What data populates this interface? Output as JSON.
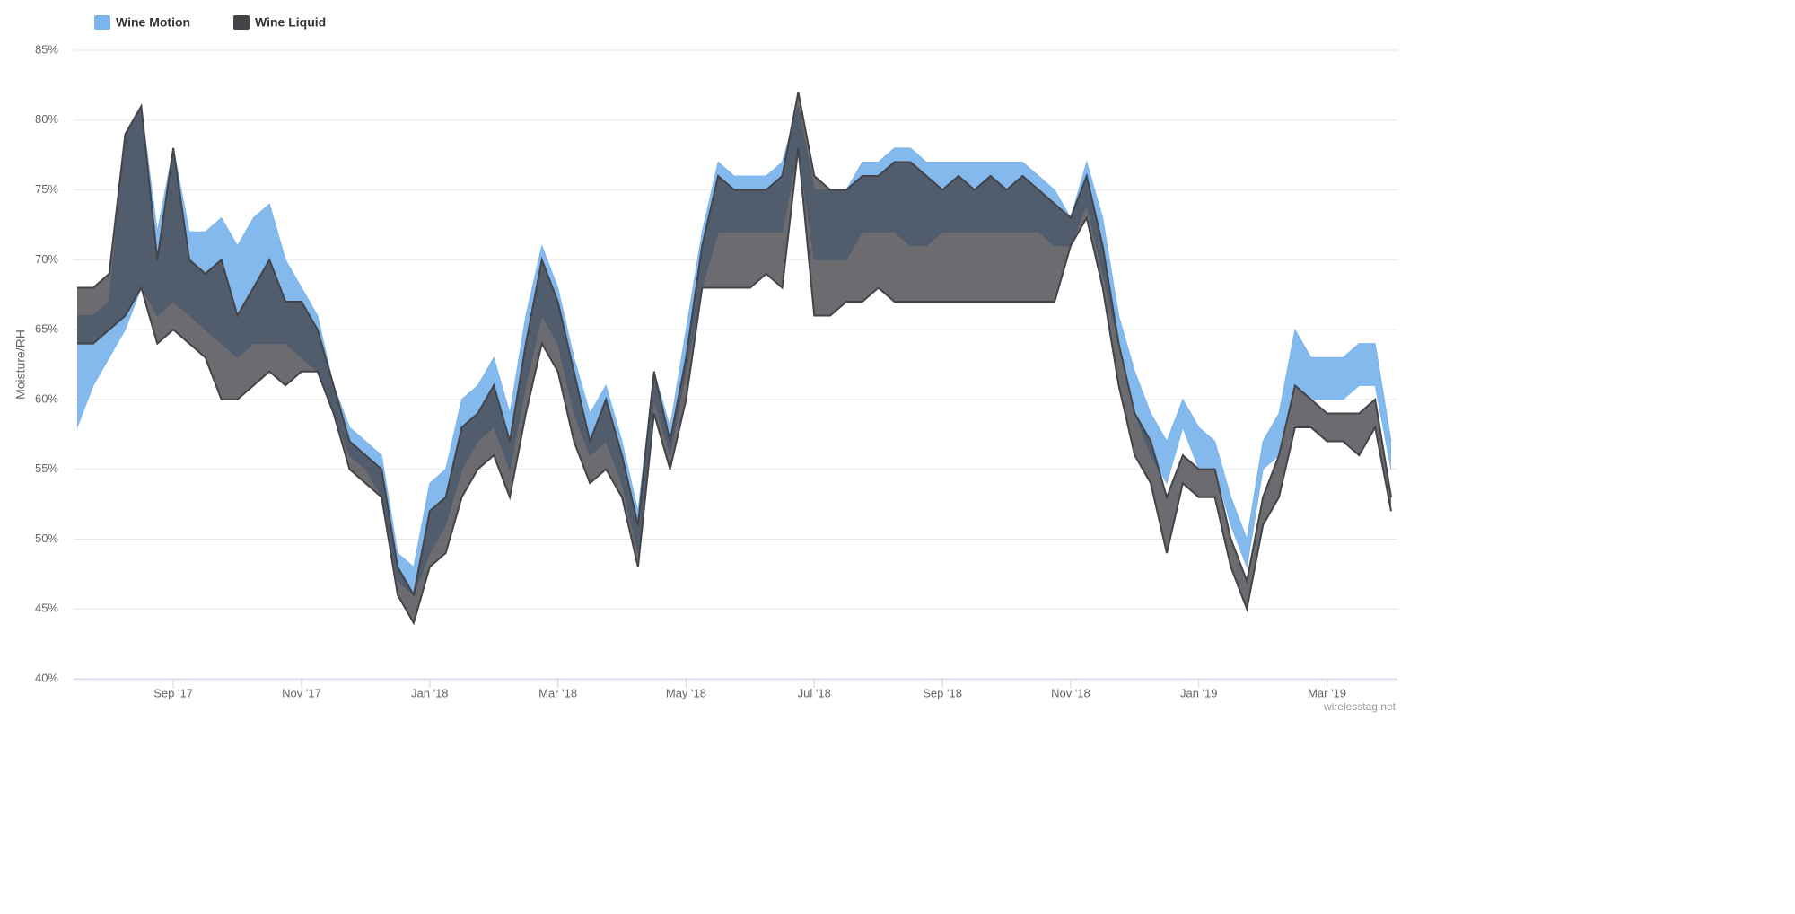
{
  "chart_data": {
    "type": "arearange",
    "y_label": "Moisture/RH",
    "credit": "wirelesstag.net",
    "legend": "top-left",
    "grid": true,
    "ylim": [
      40,
      85
    ],
    "yticks": [
      {
        "value": 40,
        "label": "40%"
      },
      {
        "value": 45,
        "label": "45%"
      },
      {
        "value": 50,
        "label": "50%"
      },
      {
        "value": 55,
        "label": "55%"
      },
      {
        "value": 60,
        "label": "60%"
      },
      {
        "value": 65,
        "label": "65%"
      },
      {
        "value": 70,
        "label": "70%"
      },
      {
        "value": 75,
        "label": "75%"
      },
      {
        "value": 80,
        "label": "80%"
      },
      {
        "value": 85,
        "label": "85%"
      }
    ],
    "categories": [
      null,
      null,
      null,
      null,
      null,
      null,
      "Sep '17",
      null,
      null,
      null,
      null,
      null,
      null,
      null,
      "Nov '17",
      null,
      null,
      null,
      null,
      null,
      null,
      null,
      "Jan '18",
      null,
      null,
      null,
      null,
      null,
      null,
      null,
      "Mar '18",
      null,
      null,
      null,
      null,
      null,
      null,
      null,
      "May '18",
      null,
      null,
      null,
      null,
      null,
      null,
      null,
      "Jul '18",
      null,
      null,
      null,
      null,
      null,
      null,
      null,
      "Sep '18",
      null,
      null,
      null,
      null,
      null,
      null,
      null,
      "Nov '18",
      null,
      null,
      null,
      null,
      null,
      null,
      null,
      "Jan '19",
      null,
      null,
      null,
      null,
      null,
      null,
      null,
      "Mar '19",
      null,
      null,
      null,
      null
    ],
    "series": [
      {
        "name": "Wine Motion",
        "color": "#7cb5ec",
        "low": [
          58,
          61,
          63,
          65,
          68,
          66,
          67,
          66,
          65,
          64,
          63,
          64,
          64,
          64,
          63,
          62,
          59,
          56,
          55,
          53,
          47,
          46,
          49,
          51,
          55,
          57,
          58,
          55,
          61,
          66,
          64,
          59,
          56,
          57,
          54,
          49,
          60,
          56,
          62,
          68,
          72,
          72,
          72,
          72,
          72,
          78,
          70,
          70,
          70,
          72,
          72,
          72,
          71,
          71,
          72,
          72,
          72,
          72,
          72,
          72,
          72,
          71,
          71,
          74,
          69,
          64,
          59,
          56,
          54,
          58,
          55,
          55,
          51,
          48,
          55,
          56,
          61,
          60,
          60,
          60,
          61,
          61,
          55
        ],
        "high": [
          66,
          66,
          67,
          79,
          81,
          72,
          78,
          72,
          72,
          73,
          71,
          73,
          74,
          70,
          68,
          66,
          61,
          58,
          57,
          56,
          49,
          48,
          54,
          55,
          60,
          61,
          63,
          59,
          66,
          71,
          68,
          63,
          59,
          61,
          57,
          52,
          62,
          58,
          65,
          72,
          77,
          76,
          76,
          76,
          77,
          81,
          75,
          75,
          75,
          77,
          77,
          78,
          78,
          77,
          77,
          77,
          77,
          77,
          77,
          77,
          76,
          75,
          73,
          77,
          73,
          66,
          62,
          59,
          57,
          60,
          58,
          57,
          53,
          50,
          57,
          59,
          65,
          63,
          63,
          63,
          64,
          64,
          57
        ]
      },
      {
        "name": "Wine Liquid",
        "color": "#434348",
        "low": [
          64,
          64,
          65,
          66,
          68,
          64,
          65,
          64,
          63,
          60,
          60,
          61,
          62,
          61,
          62,
          62,
          59,
          55,
          54,
          53,
          46,
          44,
          48,
          49,
          53,
          55,
          56,
          53,
          59,
          64,
          62,
          57,
          54,
          55,
          53,
          48,
          59,
          55,
          60,
          68,
          68,
          68,
          68,
          69,
          68,
          78,
          66,
          66,
          67,
          67,
          68,
          67,
          67,
          67,
          67,
          67,
          67,
          67,
          67,
          67,
          67,
          67,
          71,
          73,
          68,
          61,
          56,
          54,
          49,
          54,
          53,
          53,
          48,
          45,
          51,
          53,
          58,
          58,
          57,
          57,
          56,
          58,
          52
        ],
        "high": [
          68,
          68,
          69,
          79,
          81,
          70,
          78,
          70,
          69,
          70,
          66,
          68,
          70,
          67,
          67,
          65,
          61,
          57,
          56,
          55,
          48,
          46,
          52,
          53,
          58,
          59,
          61,
          57,
          64,
          70,
          67,
          62,
          57,
          60,
          56,
          51,
          62,
          57,
          63,
          71,
          76,
          75,
          75,
          75,
          76,
          82,
          76,
          75,
          75,
          76,
          76,
          77,
          77,
          76,
          75,
          76,
          75,
          76,
          75,
          76,
          75,
          74,
          73,
          76,
          71,
          64,
          59,
          57,
          53,
          56,
          55,
          55,
          50,
          47,
          53,
          56,
          61,
          60,
          59,
          59,
          59,
          60,
          53
        ]
      }
    ]
  }
}
